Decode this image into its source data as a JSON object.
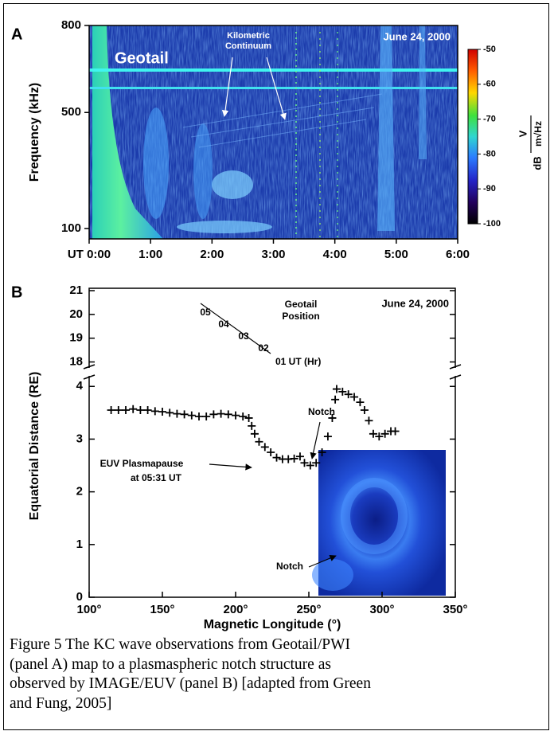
{
  "chart_data": [
    {
      "type": "spectrogram",
      "panel_label": "A",
      "title": "Geotail",
      "date": "June 24, 2000",
      "annotations": [
        "Kilometric",
        "Continuum"
      ],
      "ylabel": "Frequency (kHz)",
      "ylim": [
        64,
        800
      ],
      "yticks": [
        100,
        500,
        800
      ],
      "xlim": [
        0,
        6
      ],
      "xticks": [
        {
          "value": 0,
          "label": "UT 0:00"
        },
        {
          "value": 1,
          "label": "1:00"
        },
        {
          "value": 2,
          "label": "2:00"
        },
        {
          "value": 3,
          "label": "3:00"
        },
        {
          "value": 4,
          "label": "4:00"
        },
        {
          "value": 5,
          "label": "5:00"
        },
        {
          "value": 6,
          "label": "6:00"
        }
      ],
      "colorbar_lim": [
        -100,
        -50
      ],
      "colorbar_ticks": [
        -50,
        -60,
        -70,
        -80,
        -90,
        -100
      ],
      "colorbar_unit": "dB",
      "colorbar_numerator": "V",
      "colorbar_denominator": "m√Hz"
    },
    {
      "type": "scatter",
      "panel_label": "B",
      "date": "June 24, 2000",
      "marker": "+",
      "color": "#000000",
      "xlabel": "Magnetic Longitude (°)",
      "ylabel": "Equatorial Distance (RE)",
      "xlim": [
        100,
        350
      ],
      "xticks": [
        {
          "value": 100,
          "label": "100°"
        },
        {
          "value": 150,
          "label": "150°"
        },
        {
          "value": 200,
          "label": "200°"
        },
        {
          "value": 250,
          "label": "250°"
        },
        {
          "value": 300,
          "label": "300°"
        },
        {
          "value": 350,
          "label": "350°"
        }
      ],
      "ylim": [
        0,
        4.2
      ],
      "yticks": [
        0,
        1,
        2,
        3,
        4
      ],
      "y_upper_lim": [
        17.75,
        21.1
      ],
      "y_upper_ticks": [
        18,
        19,
        20,
        21
      ],
      "annotations": [
        "Geotail",
        "Position",
        "05",
        "04",
        "03",
        "02",
        "01 UT (Hr)",
        "Notch",
        "EUV Plasmapause",
        "at 05:31 UT",
        "Notch"
      ],
      "x": [
        115,
        120,
        125,
        130,
        135,
        140,
        145,
        150,
        155,
        160,
        165,
        170,
        175,
        180,
        185,
        190,
        195,
        200,
        205,
        209,
        211,
        213,
        216,
        220,
        224,
        228,
        232,
        236,
        240,
        244,
        247,
        251,
        255,
        259,
        263,
        266,
        268,
        269,
        273,
        277,
        281,
        285,
        288,
        291,
        294,
        298,
        302,
        306,
        309
      ],
      "values": [
        3.55,
        3.55,
        3.55,
        3.57,
        3.55,
        3.55,
        3.53,
        3.52,
        3.5,
        3.48,
        3.47,
        3.45,
        3.43,
        3.43,
        3.47,
        3.48,
        3.47,
        3.45,
        3.43,
        3.4,
        3.25,
        3.1,
        2.95,
        2.85,
        2.75,
        2.65,
        2.62,
        2.62,
        2.63,
        2.67,
        2.55,
        2.5,
        2.55,
        2.75,
        3.05,
        3.4,
        3.75,
        3.95,
        3.9,
        3.85,
        3.8,
        3.7,
        3.55,
        3.35,
        3.1,
        3.05,
        3.1,
        3.15,
        3.15
      ]
    }
  ],
  "caption_lines": [
    "Figure 5 The KC wave observations from Geotail/PWI",
    "(panel A) map to a plasmaspheric notch structure as",
    "observed by IMAGE/EUV (panel B) [adapted from Green",
    "and Fung, 2005]"
  ]
}
